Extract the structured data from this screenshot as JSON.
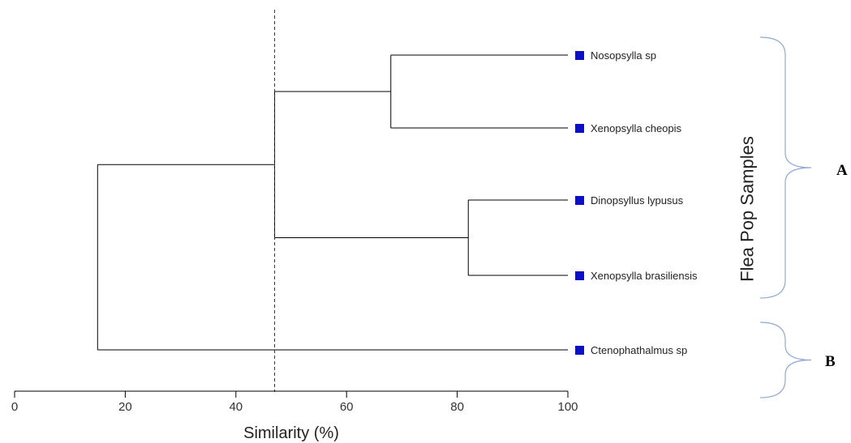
{
  "chart_data": {
    "type": "dendrogram",
    "xlabel": "Similarity (%)",
    "xlim": [
      0,
      100
    ],
    "xticks": [
      "0",
      "20",
      "40",
      "60",
      "80",
      "100"
    ],
    "cutoff": 47,
    "leaves": [
      {
        "name": "Nosopsylla sp"
      },
      {
        "name": "Xenopsylla cheopis"
      },
      {
        "name": "Dinopsyllus lypusus"
      },
      {
        "name": "Xenopsylla brasiliensis"
      },
      {
        "name": "Ctenophathalmus sp"
      }
    ],
    "merges": [
      {
        "left": 0,
        "right": 1,
        "similarity": 68
      },
      {
        "left": 2,
        "right": 3,
        "similarity": 82
      },
      {
        "left": "n0",
        "right": "n1",
        "similarity": 47
      },
      {
        "left": "n2",
        "right": 4,
        "similarity": 15
      }
    ],
    "side_label": "Flea Pop Samples",
    "groups": [
      {
        "label": "A",
        "leaves": [
          0,
          1,
          2,
          3
        ]
      },
      {
        "label": "B",
        "leaves": [
          4
        ]
      }
    ]
  },
  "colors": {
    "marker": "#0b10c4",
    "brace": "#8fa8d8",
    "line": "#000000"
  }
}
